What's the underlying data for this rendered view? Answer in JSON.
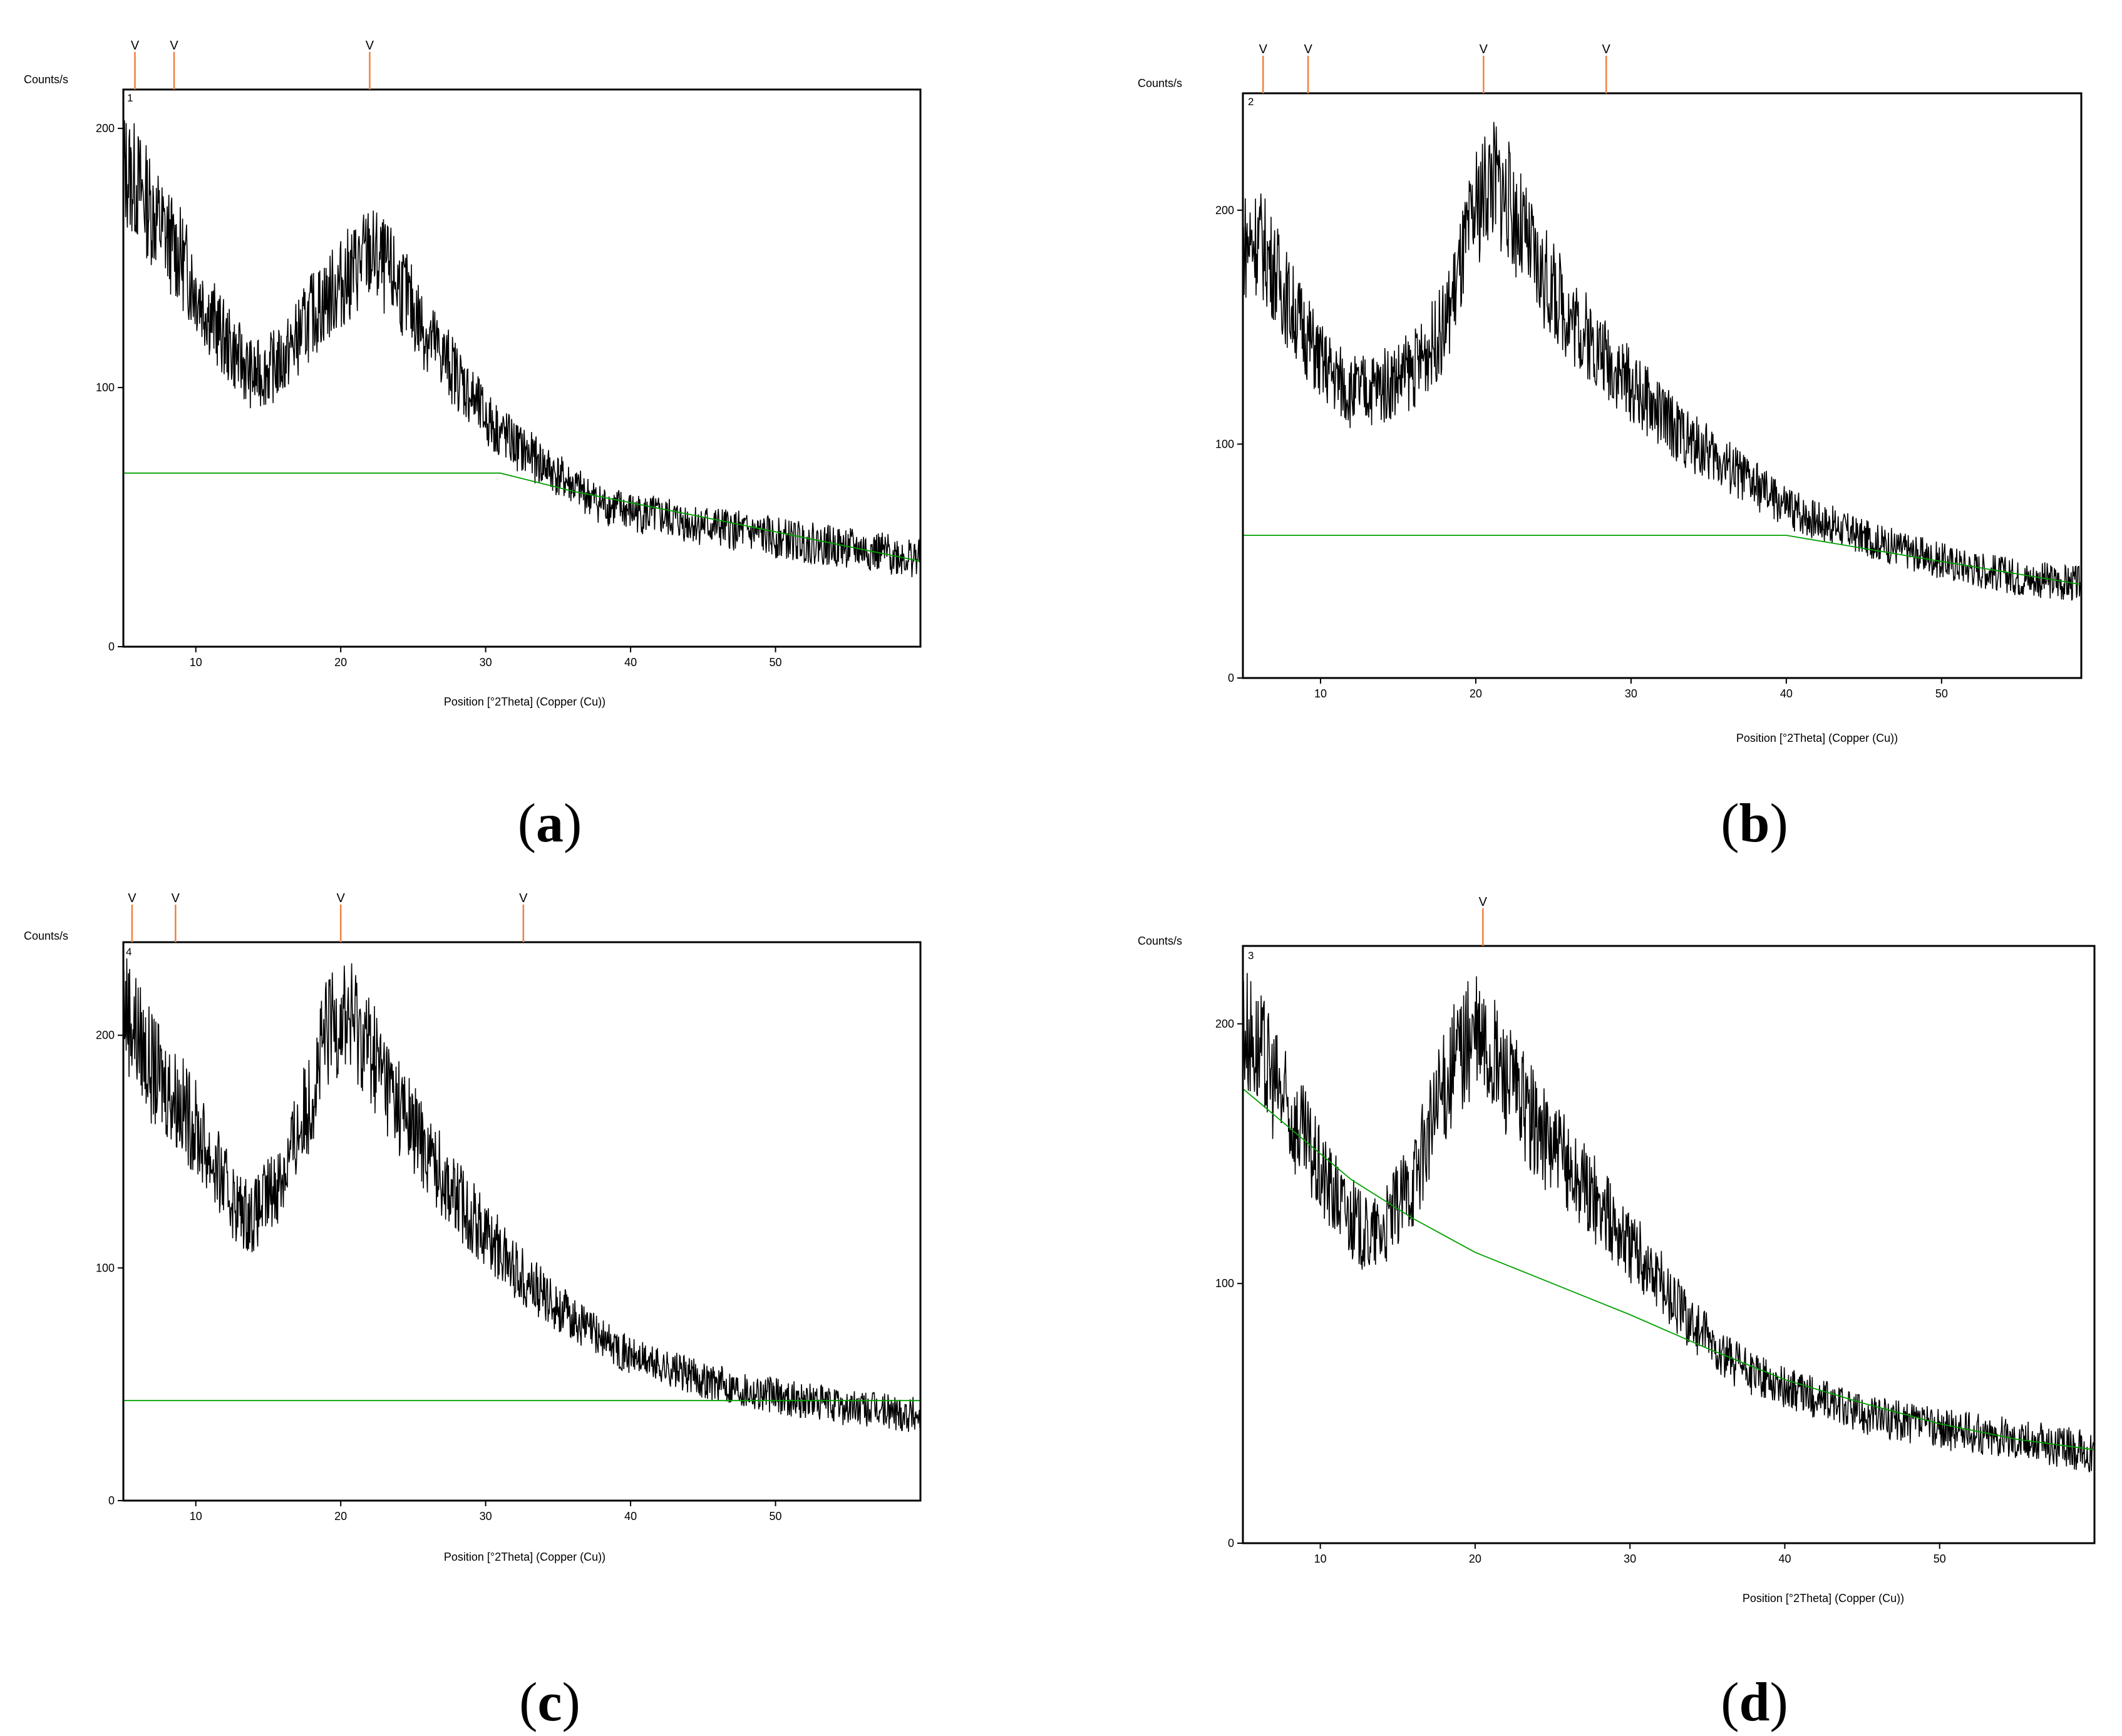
{
  "colors": {
    "trace": "#000000",
    "background": "#00a000",
    "marker": "#f08040",
    "frame": "#000000"
  },
  "chart_data": [
    {
      "panel": "a",
      "type": "line",
      "plot_label": "1",
      "ylabel": "Counts/s",
      "xlabel": "Position [°2Theta] (Copper (Cu))",
      "caption": "a",
      "xlim": [
        5,
        60
      ],
      "ylim": [
        0,
        215
      ],
      "xticks": [
        10,
        20,
        30,
        40,
        50
      ],
      "yticks": [
        0,
        100,
        200
      ],
      "marker_positions": [
        5.8,
        8.5,
        22.0
      ],
      "marker_symbol": "V",
      "background_line": [
        [
          5,
          67
        ],
        [
          31,
          67
        ],
        [
          36,
          60
        ],
        [
          45,
          50
        ],
        [
          60,
          33
        ]
      ],
      "series": [
        {
          "x": [
            5,
            6,
            7,
            8,
            9,
            10,
            12,
            14,
            16,
            18,
            20,
            22,
            24,
            26,
            28,
            30,
            32,
            34,
            36,
            38,
            40,
            45,
            50,
            55,
            60
          ],
          "values": [
            185,
            178,
            168,
            158,
            150,
            138,
            118,
            104,
            110,
            128,
            140,
            152,
            140,
            120,
            105,
            88,
            78,
            70,
            62,
            55,
            52,
            47,
            42,
            38,
            34
          ]
        }
      ]
    },
    {
      "panel": "b",
      "type": "line",
      "plot_label": "2",
      "ylabel": "Counts/s",
      "xlabel": "Position [°2Theta] (Copper (Cu))",
      "caption": "b",
      "xlim": [
        5,
        59
      ],
      "ylim": [
        0,
        250
      ],
      "xticks": [
        10,
        20,
        30,
        40,
        50
      ],
      "yticks": [
        0,
        100,
        200
      ],
      "marker_positions": [
        6.3,
        9.2,
        20.5,
        28.4
      ],
      "marker_symbol": "V",
      "background_line": [
        [
          5,
          61
        ],
        [
          40,
          61
        ],
        [
          48,
          52
        ],
        [
          59,
          40
        ]
      ],
      "series": [
        {
          "x": [
            5,
            6,
            7,
            8,
            9,
            10,
            12,
            14,
            16,
            18,
            20,
            21,
            22,
            24,
            26,
            28,
            30,
            32,
            34,
            36,
            38,
            40,
            45,
            50,
            55,
            59
          ],
          "values": [
            185,
            188,
            175,
            160,
            148,
            135,
            122,
            125,
            132,
            150,
            200,
            215,
            205,
            175,
            155,
            140,
            125,
            112,
            100,
            92,
            82,
            73,
            60,
            50,
            43,
            40
          ]
        }
      ]
    },
    {
      "panel": "c",
      "type": "line",
      "plot_label": "4",
      "ylabel": "Counts/s",
      "xlabel": "Position [°2Theta] (Copper (Cu))",
      "caption": "c",
      "xlim": [
        5,
        60
      ],
      "ylim": [
        0,
        240
      ],
      "xticks": [
        10,
        20,
        30,
        40,
        50
      ],
      "yticks": [
        0,
        100,
        200
      ],
      "marker_positions": [
        5.6,
        8.6,
        20.0,
        32.6
      ],
      "marker_symbol": "V",
      "background_line": [
        [
          5,
          43
        ],
        [
          60,
          43
        ]
      ],
      "series": [
        {
          "x": [
            5,
            6,
            7,
            8,
            9,
            10,
            12,
            13,
            14,
            16,
            18,
            19,
            20,
            21,
            22,
            24,
            26,
            28,
            30,
            32,
            34,
            36,
            38,
            40,
            45,
            50,
            55,
            60
          ],
          "values": [
            215,
            200,
            185,
            178,
            170,
            160,
            135,
            125,
            122,
            140,
            175,
            200,
            210,
            205,
            195,
            170,
            150,
            130,
            115,
            100,
            88,
            78,
            70,
            62,
            52,
            45,
            40,
            37
          ]
        }
      ]
    },
    {
      "panel": "d",
      "type": "line",
      "plot_label": "3",
      "ylabel": "Counts/s",
      "xlabel": "Position [°2Theta] (Copper (Cu))",
      "caption": "d",
      "xlim": [
        5,
        60
      ],
      "ylim": [
        0,
        230
      ],
      "xticks": [
        10,
        20,
        30,
        40,
        50
      ],
      "yticks": [
        0,
        100,
        200
      ],
      "marker_positions": [
        20.5
      ],
      "marker_symbol": "V",
      "background_line": [
        [
          5,
          175
        ],
        [
          8,
          160
        ],
        [
          12,
          140
        ],
        [
          16,
          125
        ],
        [
          20,
          112
        ],
        [
          25,
          100
        ],
        [
          30,
          88
        ],
        [
          35,
          75
        ],
        [
          40,
          63
        ],
        [
          45,
          54
        ],
        [
          50,
          46
        ],
        [
          55,
          40
        ],
        [
          60,
          36
        ]
      ],
      "series": [
        {
          "x": [
            5,
            6,
            7,
            8,
            9,
            10,
            12,
            13,
            14,
            16,
            18,
            19,
            20,
            21,
            22,
            24,
            26,
            28,
            30,
            32,
            34,
            36,
            38,
            40,
            45,
            50,
            55,
            60
          ],
          "values": [
            200,
            190,
            178,
            165,
            155,
            142,
            125,
            118,
            120,
            140,
            175,
            190,
            195,
            188,
            180,
            160,
            145,
            130,
            115,
            100,
            85,
            72,
            65,
            60,
            50,
            44,
            40,
            35
          ]
        }
      ]
    }
  ]
}
